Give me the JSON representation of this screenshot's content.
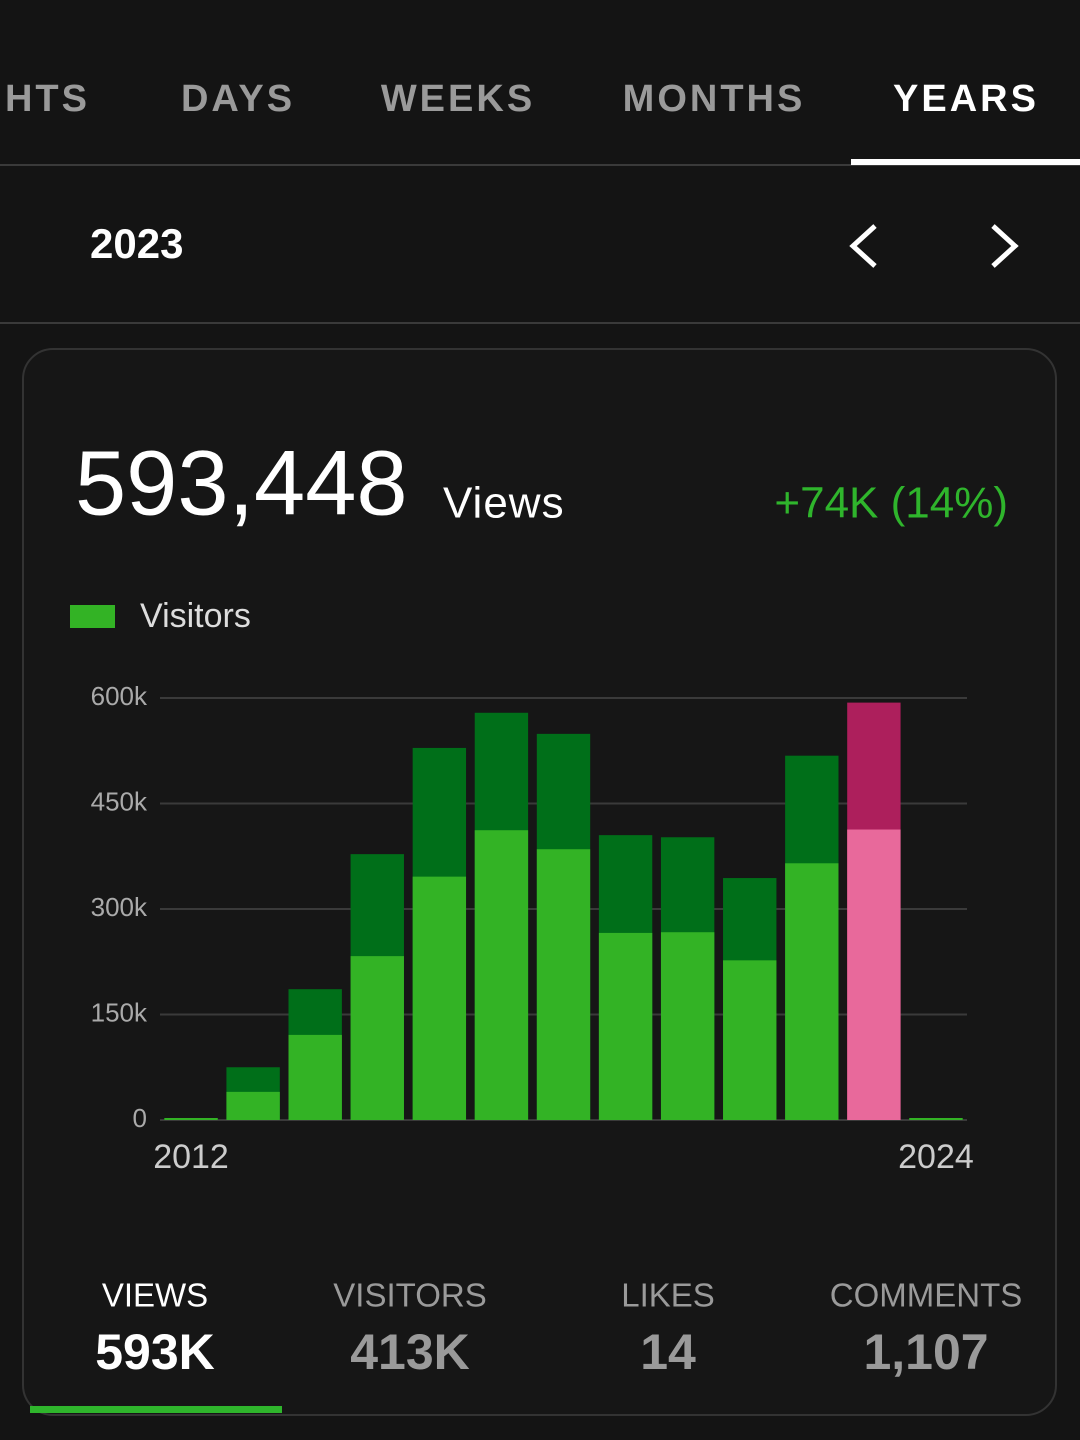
{
  "tabs": [
    "INSIGHTS",
    "DAYS",
    "WEEKS",
    "MONTHS",
    "YEARS"
  ],
  "period": "2023",
  "summary": {
    "value": "593,448",
    "unit": "Views",
    "change": "+74K (14%)"
  },
  "stats": [
    {
      "label": "VIEWS",
      "value": "593K"
    },
    {
      "label": "VISITORS",
      "value": "413K"
    },
    {
      "label": "LIKES",
      "value": "14"
    },
    {
      "label": "COMMENTS",
      "value": "1,107"
    }
  ],
  "chart_data": {
    "type": "bar",
    "categories": [
      "2012",
      null,
      null,
      null,
      null,
      null,
      null,
      null,
      null,
      null,
      null,
      null,
      "2024"
    ],
    "series": [
      {
        "color": "#006f19",
        "colors": [
          "#006f19",
          "#006f19",
          "#006f19",
          "#006f19",
          "#006f19",
          "#006f19",
          "#006f19",
          "#006f19",
          "#006f19",
          "#006f19",
          "#006f19",
          "#ad1f5c",
          "#006f19"
        ],
        "values": [
          0,
          75000,
          186000,
          378000,
          529000,
          579000,
          549000,
          405000,
          402000,
          344000,
          518000,
          593448,
          0
        ]
      },
      {
        "name": "Visitors",
        "color": "#33b325",
        "colors": [
          "#33b325",
          "#33b325",
          "#33b325",
          "#33b325",
          "#33b325",
          "#33b325",
          "#33b325",
          "#33b325",
          "#33b325",
          "#33b325",
          "#33b325",
          "#e8699b",
          "#33b325"
        ],
        "values": [
          0,
          40000,
          121000,
          233000,
          346000,
          412000,
          385000,
          266000,
          267000,
          227000,
          365000,
          413000,
          0
        ]
      }
    ],
    "ylim": [
      0,
      600000
    ],
    "yticks": [
      0,
      {
        "value": 150000,
        "label": "150k"
      },
      {
        "value": 300000,
        "label": "300k"
      },
      {
        "value": 450000,
        "label": "450k"
      },
      {
        "value": 600000,
        "label": "600k"
      }
    ],
    "grid": true
  }
}
